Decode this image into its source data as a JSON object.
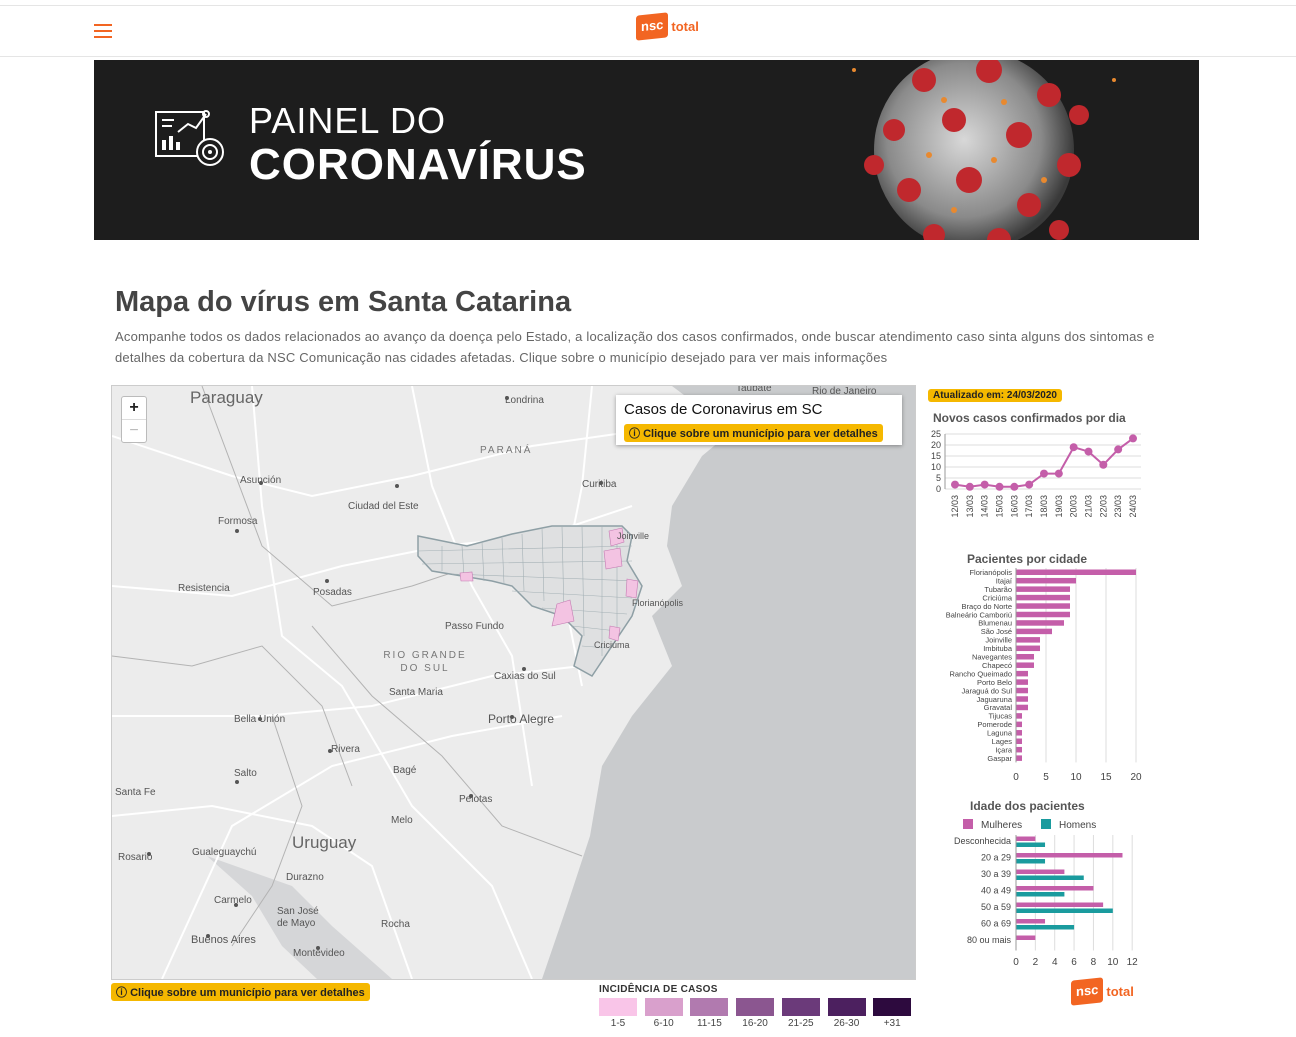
{
  "header": {
    "logo_badge": "nsc",
    "logo_text": "total"
  },
  "banner": {
    "title_line1": "PAINEL DO",
    "title_line2": "CORONAVÍRUS"
  },
  "main": {
    "title": "Mapa do vírus em Santa Catarina",
    "description": "Acompanhe todos os dados relacionados ao avanço da doença pelo Estado, a localização dos casos confirmados, onde buscar atendimento caso sinta alguns dos sintomas e detalhes da cobertura da NSC Comunicação nas cidades afetadas. Clique sobre o município desejado para ver mais informações"
  },
  "map": {
    "zoom_in": "+",
    "zoom_out": "−",
    "infobox_title": "Casos de Coronavirus em SC",
    "infobox_hint": "Clique sobre um município para ver detalhes",
    "bottom_hint": "Clique sobre um município para ver detalhes",
    "labels": {
      "paraguay": "Paraguay",
      "londrina": "Londrina",
      "parana": "PARANÁ",
      "taubate": "Taubaté",
      "rio": "Rio de Janeiro",
      "asuncion": "Asunción",
      "ciudad_del_este": "Ciudad del Este",
      "curitiba": "Curitiba",
      "formosa": "Formosa",
      "resistencia": "Resistencia",
      "posadas": "Posadas",
      "passo_fundo": "Passo Fundo",
      "rio_grande_do_sul": "RIO GRANDE DO SUL",
      "caxias": "Caxias do Sul",
      "santa_maria": "Santa Maria",
      "porto_alegre": "Porto Alegre",
      "bella_union": "Bella Unión",
      "rivera": "Rivera",
      "salto": "Salto",
      "bage": "Bagé",
      "santa_fe": "Santa Fe",
      "pelotas": "Pelotas",
      "melo": "Melo",
      "uruguay": "Uruguay",
      "rosario": "Rosario",
      "gualeguaychu": "Gualeguaychú",
      "durazno": "Durazno",
      "carmelo": "Carmelo",
      "san_jose": "San José de Mayo",
      "buenos_aires": "Buenos Aires",
      "montevideo": "Montevideo",
      "rocha": "Rocha",
      "florianopolis": "Florianópolis",
      "joinville": "Joinville",
      "criciuma": "Criciúma"
    },
    "legend_title": "INCIDÊNCIA DE CASOS",
    "legend": [
      {
        "label": "1-5",
        "color": "#f9c5e8"
      },
      {
        "label": "6-10",
        "color": "#d9a0cc"
      },
      {
        "label": "11-15",
        "color": "#b17aaf"
      },
      {
        "label": "16-20",
        "color": "#8b5690"
      },
      {
        "label": "21-25",
        "color": "#6b3a7a"
      },
      {
        "label": "26-30",
        "color": "#4c205f"
      },
      {
        "label": "+31",
        "color": "#2d0a3e"
      }
    ]
  },
  "sidebar": {
    "updated": "Atualizado em: 24/03/2020"
  },
  "chart_data": [
    {
      "type": "line",
      "title": "Novos casos confirmados por dia",
      "x": [
        "12/03",
        "13/03",
        "14/03",
        "15/03",
        "16/03",
        "17/03",
        "18/03",
        "19/03",
        "20/03",
        "21/03",
        "22/03",
        "23/03",
        "24/03"
      ],
      "values": [
        2,
        1,
        2,
        1,
        1,
        2,
        7,
        7,
        19,
        17,
        11,
        18,
        23
      ],
      "yticks": [
        0,
        5,
        10,
        15,
        20,
        25
      ],
      "ylim": [
        0,
        25
      ],
      "color": "#c45ea9"
    },
    {
      "type": "bar",
      "title": "Pacientes por cidade",
      "categories": [
        "Florianópolis",
        "Itajaí",
        "Tubarão",
        "Criciúma",
        "Braço do Norte",
        "Balneário Camboriú",
        "Blumenau",
        "São José",
        "Joinville",
        "Imbituba",
        "Navegantes",
        "Chapecó",
        "Rancho Queimado",
        "Porto Belo",
        "Jaraguá do Sul",
        "Jaguaruna",
        "Gravatal",
        "Tijucas",
        "Pomerode",
        "Laguna",
        "Lages",
        "Içara",
        "Gaspar"
      ],
      "values": [
        20,
        10,
        9,
        9,
        9,
        9,
        8,
        6,
        4,
        4,
        3,
        3,
        2,
        2,
        2,
        2,
        2,
        1,
        1,
        1,
        1,
        1,
        1
      ],
      "xticks": [
        0,
        5,
        10,
        15,
        20
      ],
      "xlim": [
        0,
        20
      ],
      "color": "#c45ea9"
    },
    {
      "type": "bar",
      "title": "Idade dos pacientes",
      "categories": [
        "Desconhecida",
        "20 a 29",
        "30 a 39",
        "40 a 49",
        "50 a 59",
        "60 a 69",
        "80 ou mais"
      ],
      "series": [
        {
          "name": "Mulheres",
          "values": [
            2,
            11,
            5,
            8,
            9,
            3,
            2
          ],
          "color": "#c45ea9"
        },
        {
          "name": "Homens",
          "values": [
            3,
            3,
            7,
            5,
            10,
            6,
            0
          ],
          "color": "#1a9b9e"
        }
      ],
      "xticks": [
        0,
        2,
        4,
        6,
        8,
        10,
        12
      ],
      "xlim": [
        0,
        12.5
      ]
    }
  ]
}
